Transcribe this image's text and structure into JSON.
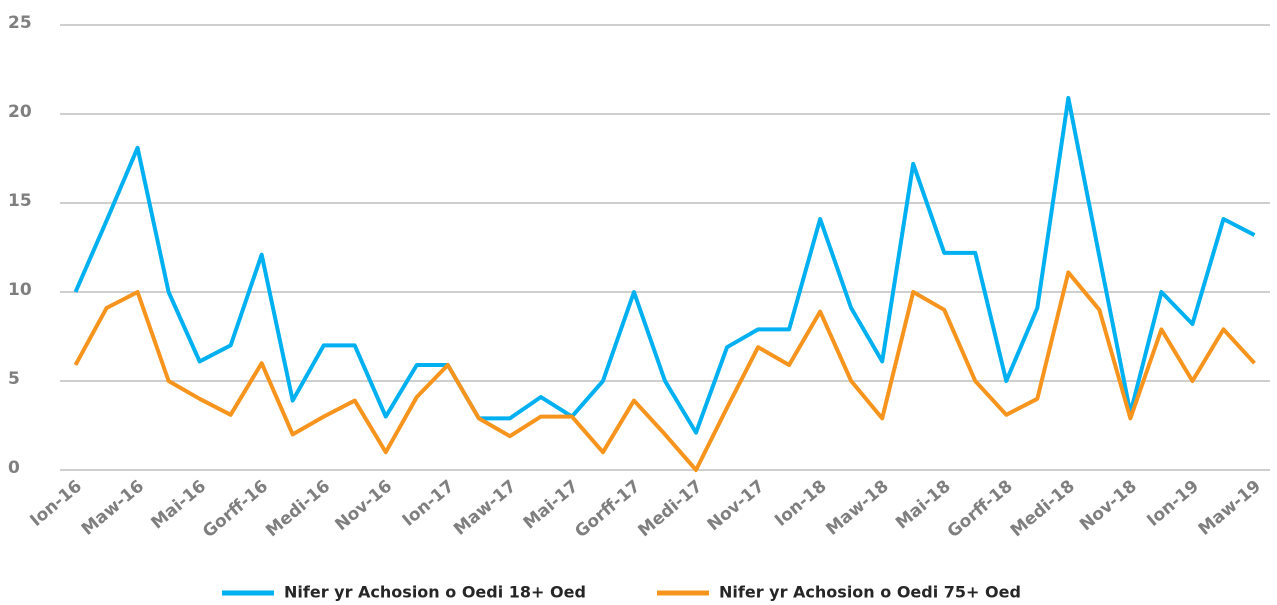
{
  "chart_data": {
    "type": "line",
    "categories": [
      "Ion-16",
      null,
      "Maw-16",
      null,
      "Mai-16",
      null,
      "Gorff-16",
      null,
      "Medi-16",
      null,
      "Nov-16",
      null,
      "Ion-17",
      null,
      "Maw-17",
      null,
      "Mai-17",
      null,
      "Gorff-17",
      null,
      "Medi-17",
      null,
      "Nov-17",
      null,
      "Ion-18",
      null,
      "Maw-18",
      null,
      "Mai-18",
      null,
      "Gorff-18",
      null,
      "Medi-18",
      null,
      "Nov-18",
      null,
      "Ion-19",
      null,
      "Maw-19"
    ],
    "series": [
      {
        "name": "Nifer yr Achosion o Oedi 18+ Oed",
        "color": "#00b0f0",
        "values": [
          10,
          14,
          18.1,
          10,
          6.1,
          7,
          12.1,
          3.9,
          7,
          7,
          3,
          5.9,
          5.9,
          2.9,
          2.9,
          4.1,
          3,
          5,
          10,
          5,
          2.1,
          6.9,
          7.9,
          7.9,
          14.1,
          9.1,
          6.1,
          17.2,
          12.2,
          12.2,
          5,
          9.1,
          20.9,
          12,
          3.2,
          10,
          8.2,
          14.1,
          13.2
        ]
      },
      {
        "name": "Nifer yr Achosion o Oedi 75+ Oed",
        "color": "#f7941d",
        "values": [
          5.9,
          9.1,
          10,
          5,
          4,
          3.1,
          6,
          2,
          3,
          3.9,
          1,
          4.1,
          5.9,
          2.9,
          1.9,
          3,
          3,
          1,
          3.9,
          2,
          0,
          3.5,
          6.9,
          5.9,
          8.9,
          5,
          2.9,
          10,
          9,
          5,
          3.1,
          4,
          11.1,
          9,
          2.9,
          7.9,
          5,
          7.9,
          6
        ]
      }
    ],
    "ylim": [
      0,
      25
    ],
    "yticks": [
      0,
      5,
      10,
      15,
      20,
      25
    ],
    "grid": true
  }
}
